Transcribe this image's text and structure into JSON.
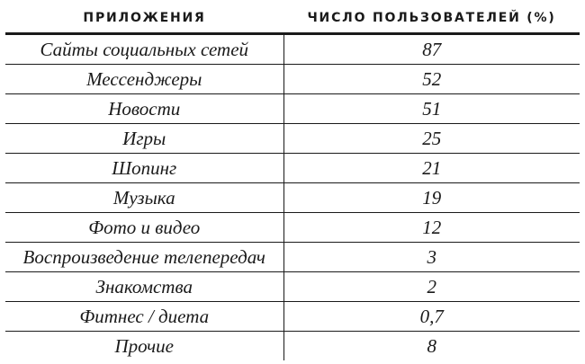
{
  "table": {
    "headers": [
      "ПРИЛОЖЕНИЯ",
      "ЧИСЛО ПОЛЬЗОВАТЕЛЕЙ (%)"
    ],
    "rows": [
      {
        "app": "Сайты социальных сетей",
        "value": "87"
      },
      {
        "app": "Мессенджеры",
        "value": "52"
      },
      {
        "app": "Новости",
        "value": "51"
      },
      {
        "app": "Игры",
        "value": "25"
      },
      {
        "app": "Шопинг",
        "value": "21"
      },
      {
        "app": "Музыка",
        "value": "19"
      },
      {
        "app": "Фото и видео",
        "value": "12"
      },
      {
        "app": "Воспроизведение телепередач",
        "value": "3"
      },
      {
        "app": "Знакомства",
        "value": "2"
      },
      {
        "app": "Фитнес / диета",
        "value": "0,7"
      },
      {
        "app": "Прочие",
        "value": "8"
      }
    ]
  }
}
